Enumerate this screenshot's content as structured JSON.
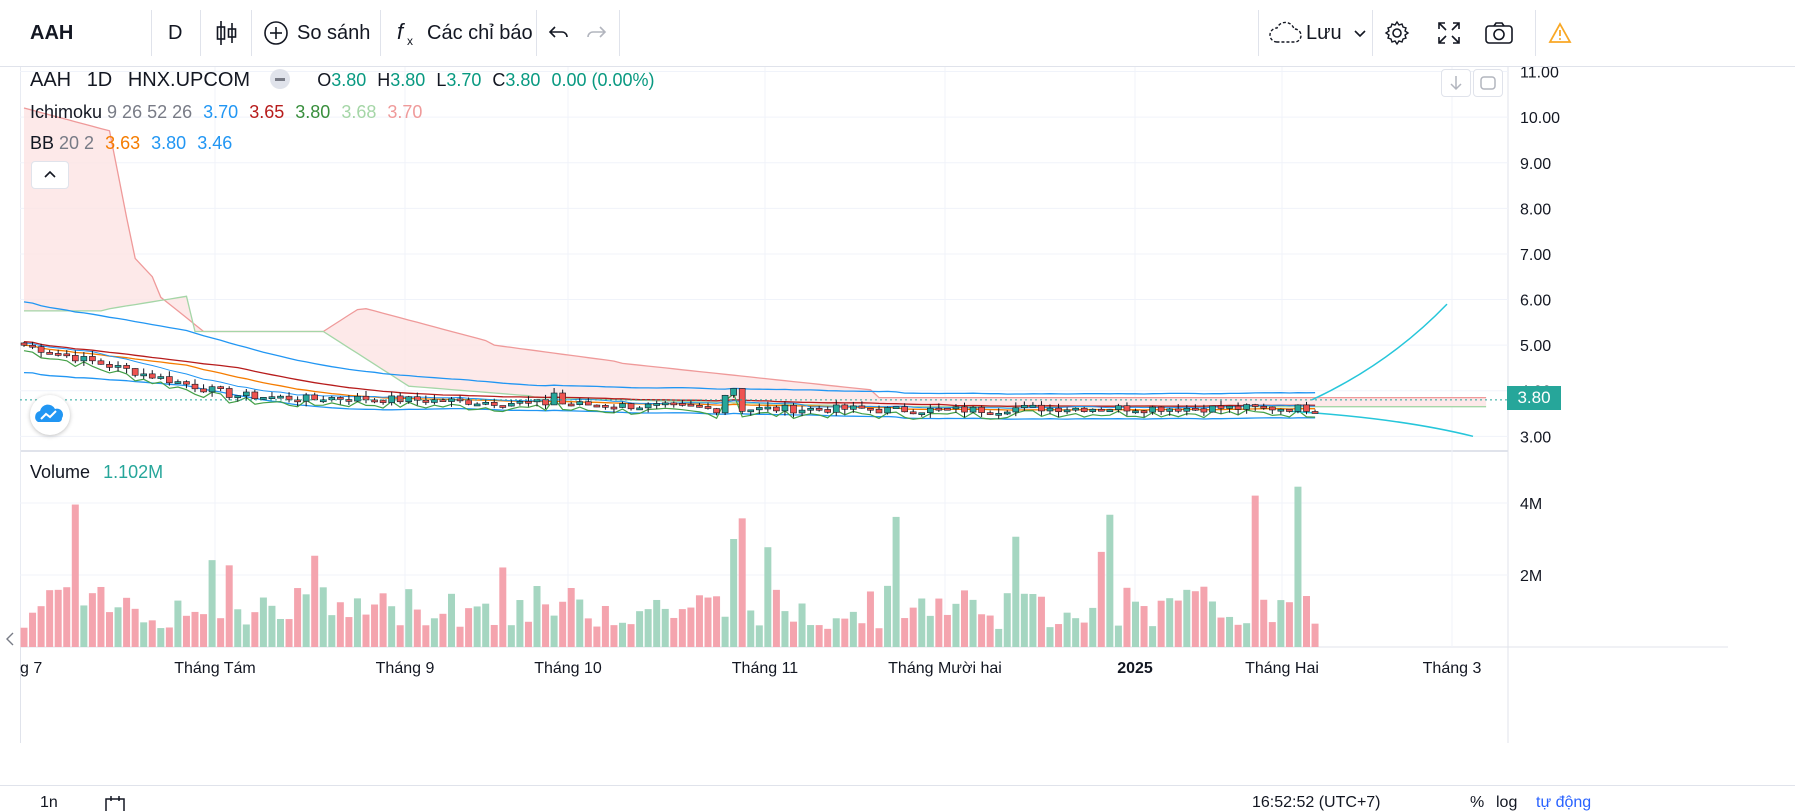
{
  "toolbar": {
    "symbol": "AAH",
    "interval": "D",
    "compare_label": "So sánh",
    "indicators_label": "Các chỉ báo",
    "save_label": "Lưu"
  },
  "legend": {
    "symbol": "AAH",
    "interval": "1D",
    "exchange": "HNX.UPCOM",
    "open_label": "O",
    "open": "3.80",
    "high_label": "H",
    "high": "3.80",
    "low_label": "L",
    "low": "3.70",
    "close_label": "C",
    "close": "3.80",
    "change": "0.00 (0.00%)",
    "ichimoku_name": "Ichimoku",
    "ichimoku_params": "9 26 52 26",
    "ichimoku_values": [
      "3.70",
      "3.65",
      "3.80",
      "3.68",
      "3.70"
    ],
    "bb_name": "BB",
    "bb_params": "20 2",
    "bb_values": [
      "3.63",
      "3.80",
      "3.46"
    ],
    "volume_name": "Volume",
    "volume_value": "1.102M"
  },
  "price_label": "3.80",
  "bottom": {
    "range_label": "1n",
    "clock": "16:52:52 (UTC+7)",
    "percent": "%",
    "log": "log",
    "auto": "tự động"
  },
  "colors": {
    "up": "#26a69a",
    "down": "#ef5350",
    "vol_up": "#a5d6c1",
    "vol_down": "#f4a4ae",
    "bb_basis": "#f57c00",
    "bb_band": "#2196f3",
    "tenkan": "#2196f3",
    "kijun": "#b71c1c",
    "chikou": "#43a047",
    "span_a": "#a5d6a7",
    "span_b": "#ef9a9a",
    "cloud_up": "#e8f5e9",
    "cloud_down": "#fde4e4"
  },
  "chart_data": {
    "type": "candlestick",
    "y_ticks": [
      "11.00",
      "10.00",
      "9.00",
      "8.00",
      "7.00",
      "6.00",
      "5.00",
      "4.00",
      "3.00"
    ],
    "ylim": [
      2.7,
      11.1
    ],
    "volume_ticks": [
      "4M",
      "2M"
    ],
    "x_labels": [
      "g 7",
      "Tháng Tám",
      "Tháng 9",
      "Tháng 10",
      "Tháng 11",
      "Tháng Mười hai",
      "2025",
      "Tháng Hai",
      "Tháng 3"
    ],
    "last_price": 3.8
  }
}
